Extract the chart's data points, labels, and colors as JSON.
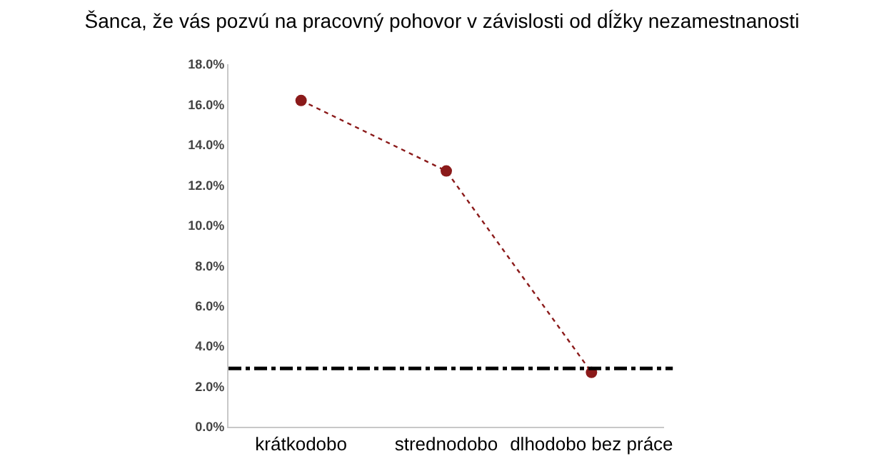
{
  "chart_data": {
    "type": "line",
    "title": "Šanca, že vás pozvú na pracovný pohovor v závislosti od dĺžky nezamestnanosti",
    "categories": [
      "krátkodobo",
      "strednodobo",
      "dlhodobo bez práce"
    ],
    "series": [
      {
        "color": "#8b1a1a",
        "values": [
          16.2,
          12.7,
          2.7
        ]
      }
    ],
    "ylim": [
      0,
      18
    ],
    "yticks": [
      {
        "value": 0,
        "label": "0.0%"
      },
      {
        "value": 2,
        "label": "2.0%"
      },
      {
        "value": 4,
        "label": "4.0%"
      },
      {
        "value": 6,
        "label": "6.0%"
      },
      {
        "value": 8,
        "label": "8.0%"
      },
      {
        "value": 10,
        "label": "10.0%"
      },
      {
        "value": 12,
        "label": "12.0%"
      },
      {
        "value": 14,
        "label": "14.0%"
      },
      {
        "value": 16,
        "label": "16.0%"
      },
      {
        "value": 18,
        "label": "18.0%"
      }
    ],
    "ref_lines": [
      {
        "axis": "y",
        "value": 2.9,
        "color": "#000000",
        "line_style": "dashed"
      }
    ],
    "grid": false,
    "marker": "circle",
    "line_style": "dotted"
  }
}
